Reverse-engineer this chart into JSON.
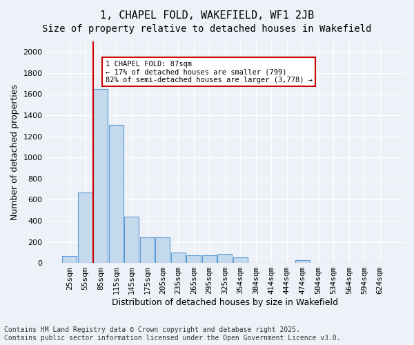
{
  "title": "1, CHAPEL FOLD, WAKEFIELD, WF1 2JB",
  "subtitle": "Size of property relative to detached houses in Wakefield",
  "xlabel": "Distribution of detached houses by size in Wakefield",
  "ylabel": "Number of detached properties",
  "categories": [
    "25sqm",
    "55sqm",
    "85sqm",
    "115sqm",
    "145sqm",
    "175sqm",
    "205sqm",
    "235sqm",
    "265sqm",
    "295sqm",
    "325sqm",
    "354sqm",
    "384sqm",
    "414sqm",
    "444sqm",
    "474sqm",
    "504sqm",
    "534sqm",
    "564sqm",
    "594sqm",
    "624sqm"
  ],
  "values": [
    65,
    670,
    1650,
    1310,
    440,
    240,
    240,
    100,
    70,
    70,
    85,
    55,
    0,
    0,
    0,
    25,
    0,
    0,
    0,
    0,
    0
  ],
  "bar_color": "#c5d9ed",
  "bar_edge_color": "#5b9bd5",
  "bar_edge_width": 0.8,
  "vline_x": 2,
  "vline_color": "#cc0000",
  "annotation_text": "1 CHAPEL FOLD: 87sqm\n← 17% of detached houses are smaller (799)\n82% of semi-detached houses are larger (3,778) →",
  "annotation_box_color": "#ffffff",
  "annotation_box_edge": "#cc0000",
  "ylim": [
    0,
    2100
  ],
  "yticks": [
    0,
    200,
    400,
    600,
    800,
    1000,
    1200,
    1400,
    1600,
    1800,
    2000
  ],
  "bg_color": "#eef2f8",
  "plot_bg_color": "#eef2f8",
  "grid_color": "#ffffff",
  "footnote": "Contains HM Land Registry data © Crown copyright and database right 2025.\nContains public sector information licensed under the Open Government Licence v3.0.",
  "title_fontsize": 11,
  "subtitle_fontsize": 10,
  "axis_label_fontsize": 9,
  "tick_fontsize": 8,
  "footnote_fontsize": 7
}
